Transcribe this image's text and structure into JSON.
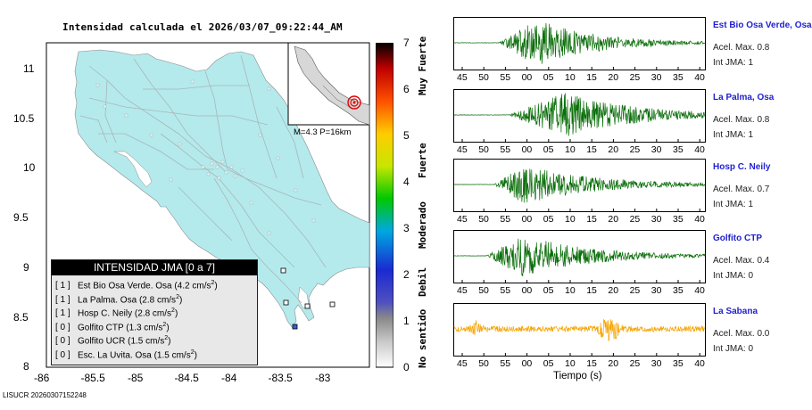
{
  "title": "Intensidad calculada el 2026/03/07_09:22:44_AM",
  "footer": "LISUCR 20260307152248",
  "map": {
    "lat_ticks": [
      "11",
      "10.5",
      "10",
      "9.5",
      "9",
      "8.5",
      "8"
    ],
    "lon_ticks": [
      "-86",
      "-85.5",
      "-85",
      "-84.5",
      "-84",
      "-83.5",
      "-83"
    ],
    "inset_label": "M=4.3 P=16km",
    "colors": {
      "land": "#b4eaec",
      "sea": "#ffffff",
      "roads": "#a9b6ba",
      "epicenter": "#e00000"
    }
  },
  "legend": {
    "header": "INTENSIDAD JMA [0 a 7]",
    "rows": [
      {
        "idx": "[ 1 ]",
        "name": "Est Bio Osa Verde. Osa",
        "accel": "(4.2 cm/s",
        "sup": "2",
        "close": ")"
      },
      {
        "idx": "[ 1 ]",
        "name": "La Palma. Osa",
        "accel": "(2.8 cm/s",
        "sup": "2",
        "close": ")"
      },
      {
        "idx": "[ 1 ]",
        "name": "Hosp C. Neily",
        "accel": "(2.8 cm/s",
        "sup": "2",
        "close": ")"
      },
      {
        "idx": "[ 0 ]",
        "name": "Golfito CTP",
        "accel": "(1.3 cm/s",
        "sup": "2",
        "close": ")"
      },
      {
        "idx": "[ 0 ]",
        "name": "Golfito UCR",
        "accel": "(1.5 cm/s",
        "sup": "2",
        "close": ")"
      },
      {
        "idx": "[ 0 ]",
        "name": "Esc. La Uvita. Osa",
        "accel": "(1.5 cm/s",
        "sup": "2",
        "close": ")"
      }
    ]
  },
  "colorbar": {
    "ticks": [
      "7",
      "6",
      "5",
      "4",
      "3",
      "2",
      "1",
      "0"
    ],
    "labels": [
      {
        "text": "Muy Fuerte",
        "top": true
      },
      {
        "text": "Fuerte"
      },
      {
        "text": "Moderado"
      },
      {
        "text": "Debil"
      },
      {
        "text": "No sentido"
      }
    ]
  },
  "stations": [
    {
      "name": "Est Bio Osa Verde, Osa",
      "accel": "Acel. Max. 0.8",
      "jma": "Int JMA: 1",
      "ticks": [
        "45",
        "50",
        "55",
        "00",
        "05",
        "10",
        "15",
        "20",
        "25",
        "30",
        "35",
        "40"
      ],
      "color": "#0a6e0a",
      "onset": 0.18,
      "peak": 0.33,
      "amp": 1.0,
      "tail": 0.55
    },
    {
      "name": "La Palma, Osa",
      "accel": "Acel. Max. 0.8",
      "jma": "Int JMA: 1",
      "ticks": [
        "45",
        "50",
        "55",
        "00",
        "05",
        "10",
        "15",
        "20",
        "25",
        "30",
        "35",
        "40"
      ],
      "color": "#0a6e0a",
      "onset": 0.22,
      "peak": 0.44,
      "amp": 0.95,
      "tail": 0.8
    },
    {
      "name": "Hosp C. Neily",
      "accel": "Acel. Max. 0.7",
      "jma": "Int JMA: 1",
      "ticks": [
        "45",
        "50",
        "55",
        "00",
        "05",
        "10",
        "15",
        "20",
        "25",
        "30",
        "35",
        "40"
      ],
      "color": "#0a6e0a",
      "onset": 0.16,
      "peak": 0.28,
      "amp": 0.85,
      "tail": 0.75
    },
    {
      "name": "Golfito CTP",
      "accel": "Acel. Max. 0.4",
      "jma": "Int JMA: 0",
      "ticks": [
        "45",
        "50",
        "55",
        "00",
        "05",
        "10",
        "15",
        "20",
        "25",
        "30",
        "35",
        "40"
      ],
      "color": "#0a6e0a",
      "onset": 0.13,
      "peak": 0.27,
      "amp": 0.9,
      "tail": 0.7
    },
    {
      "name": "La Sabana",
      "accel": "Acel. Max. 0.0",
      "jma": "Int JMA: 0",
      "ticks": [
        "45",
        "50",
        "55",
        "00",
        "05",
        "10",
        "15",
        "20",
        "25",
        "30",
        "35",
        "40"
      ],
      "color": "#f5a300",
      "onset": 0.0,
      "peak": 0.6,
      "amp": 0.55,
      "tail": 1.0,
      "noise": true
    }
  ],
  "time_axis_label": "Tiempo (s)"
}
